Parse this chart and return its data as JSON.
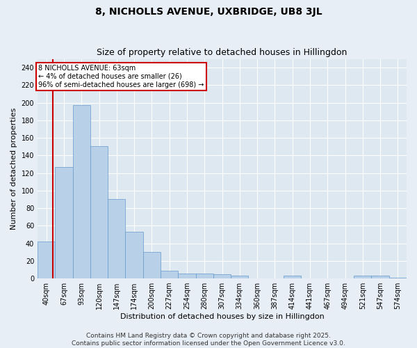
{
  "title": "8, NICHOLLS AVENUE, UXBRIDGE, UB8 3JL",
  "subtitle": "Size of property relative to detached houses in Hillingdon",
  "xlabel": "Distribution of detached houses by size in Hillingdon",
  "ylabel": "Number of detached properties",
  "categories": [
    "40sqm",
    "67sqm",
    "93sqm",
    "120sqm",
    "147sqm",
    "174sqm",
    "200sqm",
    "227sqm",
    "254sqm",
    "280sqm",
    "307sqm",
    "334sqm",
    "360sqm",
    "387sqm",
    "414sqm",
    "441sqm",
    "467sqm",
    "494sqm",
    "521sqm",
    "547sqm",
    "574sqm"
  ],
  "values": [
    42,
    127,
    197,
    151,
    90,
    53,
    30,
    9,
    6,
    6,
    5,
    3,
    0,
    0,
    3,
    0,
    0,
    0,
    3,
    3,
    1
  ],
  "bar_color": "#b8d0e8",
  "bar_edgecolor": "#6699cc",
  "highlight_color": "#cc0000",
  "annotation_text": "8 NICHOLLS AVENUE: 63sqm\n← 4% of detached houses are smaller (26)\n96% of semi-detached houses are larger (698) →",
  "annotation_box_color": "#cc0000",
  "ylim": [
    0,
    250
  ],
  "yticks": [
    0,
    20,
    40,
    60,
    80,
    100,
    120,
    140,
    160,
    180,
    200,
    220,
    240
  ],
  "footer_line1": "Contains HM Land Registry data © Crown copyright and database right 2025.",
  "footer_line2": "Contains public sector information licensed under the Open Government Licence v3.0.",
  "bg_color": "#e8eef5",
  "plot_bg_color": "#dde8f0",
  "grid_color": "#ffffff",
  "title_fontsize": 10,
  "subtitle_fontsize": 9,
  "axis_label_fontsize": 8,
  "tick_fontsize": 7,
  "annotation_fontsize": 7,
  "footer_fontsize": 6.5
}
